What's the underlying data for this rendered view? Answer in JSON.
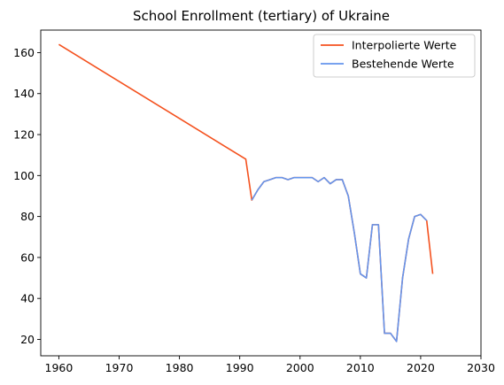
{
  "chart_data": {
    "type": "line",
    "title": "School Enrollment (tertiary) of Ukraine",
    "xlabel": "",
    "ylabel": "",
    "xlim": [
      1957,
      2030
    ],
    "ylim": [
      12,
      171
    ],
    "xticks": [
      1960,
      1970,
      1980,
      1990,
      2000,
      2010,
      2020,
      2030
    ],
    "yticks": [
      20,
      40,
      60,
      80,
      100,
      120,
      140,
      160
    ],
    "grid": false,
    "legend_position": "top-right",
    "series": [
      {
        "name": "Interpolierte Werte",
        "color": "#f4511e",
        "x": [
          1960,
          1991,
          1992,
          1993,
          1994,
          1995,
          1996,
          1997,
          1998,
          1999,
          2000,
          2001,
          2002,
          2003,
          2004,
          2005,
          2006,
          2007,
          2008,
          2009,
          2010,
          2011,
          2012,
          2013,
          2014,
          2015,
          2016,
          2017,
          2018,
          2019,
          2020,
          2021,
          2022
        ],
        "y": [
          164,
          108,
          88,
          93,
          97,
          98,
          99,
          99,
          98,
          99,
          99,
          99,
          99,
          97,
          99,
          96,
          98,
          98,
          90,
          72,
          52,
          50,
          76,
          76,
          23,
          23,
          19,
          50,
          69,
          80,
          81,
          78,
          52
        ]
      },
      {
        "name": "Bestehende Werte",
        "color": "#6495ed",
        "x": [
          1992,
          1993,
          1994,
          1995,
          1996,
          1997,
          1998,
          1999,
          2000,
          2001,
          2002,
          2003,
          2004,
          2005,
          2006,
          2007,
          2008,
          2009,
          2010,
          2011,
          2012,
          2013,
          2014,
          2015,
          2016,
          2017,
          2018,
          2019,
          2020,
          2021
        ],
        "y": [
          88,
          93,
          97,
          98,
          99,
          99,
          98,
          99,
          99,
          99,
          99,
          97,
          99,
          96,
          98,
          98,
          90,
          72,
          52,
          50,
          76,
          76,
          23,
          23,
          19,
          50,
          69,
          80,
          81,
          78
        ]
      }
    ]
  }
}
